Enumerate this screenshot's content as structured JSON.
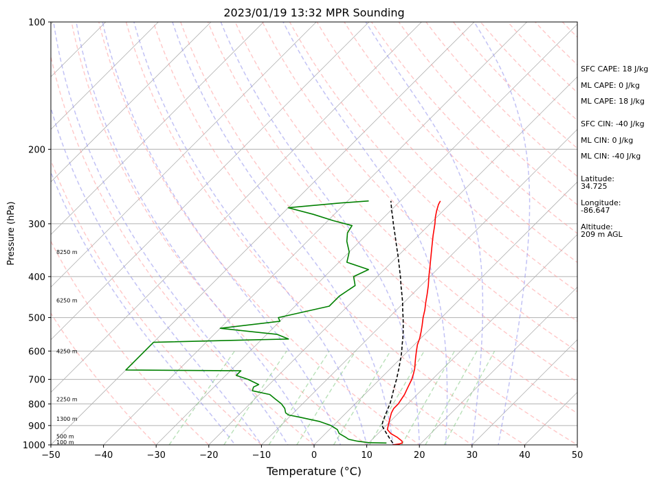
{
  "chart_data": {
    "type": "line",
    "subtype": "skew-T log-P",
    "title": "2023/01/19 13:32 MPR Sounding",
    "xlabel": "Temperature (°C)",
    "ylabel": "Pressure (hPa)",
    "xlim": [
      -50,
      50
    ],
    "ylim": [
      1000,
      100
    ],
    "y_scale": "log",
    "x_ticks": [
      -50,
      -40,
      -30,
      -20,
      -10,
      0,
      10,
      20,
      30,
      40,
      50
    ],
    "y_ticks": [
      100,
      200,
      300,
      400,
      500,
      600,
      700,
      800,
      900,
      1000
    ],
    "x_tick_labels": [
      "−50",
      "−40",
      "−30",
      "−20",
      "−10",
      "0",
      "10",
      "20",
      "30",
      "40",
      "50"
    ],
    "y_tick_labels": [
      "100",
      "200",
      "300",
      "400",
      "500",
      "600",
      "700",
      "800",
      "900",
      "1000"
    ],
    "grid": "isobars",
    "series": [
      {
        "id": "temperature",
        "color": "#ff0000",
        "points": [
          [
            1000,
            14.9
          ],
          [
            995,
            16.0
          ],
          [
            990,
            16.4
          ],
          [
            980,
            16.0
          ],
          [
            960,
            14.4
          ],
          [
            940,
            12.4
          ],
          [
            920,
            11.0
          ],
          [
            900,
            10.4
          ],
          [
            880,
            9.8
          ],
          [
            860,
            9.2
          ],
          [
            840,
            8.6
          ],
          [
            820,
            8.2
          ],
          [
            800,
            8.2
          ],
          [
            780,
            7.9
          ],
          [
            760,
            7.6
          ],
          [
            740,
            7.1
          ],
          [
            720,
            6.6
          ],
          [
            700,
            6.1
          ],
          [
            680,
            5.4
          ],
          [
            660,
            4.6
          ],
          [
            640,
            3.6
          ],
          [
            620,
            2.6
          ],
          [
            600,
            1.6
          ],
          [
            580,
            0.6
          ],
          [
            560,
            -0.2
          ],
          [
            540,
            -1.2
          ],
          [
            520,
            -2.3
          ],
          [
            500,
            -3.5
          ],
          [
            480,
            -4.6
          ],
          [
            460,
            -5.9
          ],
          [
            440,
            -7.2
          ],
          [
            420,
            -8.6
          ],
          [
            400,
            -10.2
          ],
          [
            380,
            -11.8
          ],
          [
            360,
            -13.5
          ],
          [
            340,
            -15.3
          ],
          [
            320,
            -17.2
          ],
          [
            300,
            -19.1
          ],
          [
            290,
            -20.2
          ],
          [
            280,
            -21.2
          ],
          [
            270,
            -22.1
          ],
          [
            265,
            -22.4
          ]
        ]
      },
      {
        "id": "dewpoint",
        "color": "#008000",
        "points": [
          [
            990,
            13.4
          ],
          [
            988,
            10.0
          ],
          [
            980,
            7.5
          ],
          [
            970,
            5.5
          ],
          [
            960,
            4.6
          ],
          [
            940,
            2.6
          ],
          [
            920,
            1.5
          ],
          [
            900,
            -0.5
          ],
          [
            880,
            -3.5
          ],
          [
            860,
            -8.0
          ],
          [
            850,
            -10.5
          ],
          [
            840,
            -11.5
          ],
          [
            820,
            -12.5
          ],
          [
            800,
            -14.0
          ],
          [
            780,
            -16.0
          ],
          [
            760,
            -18.0
          ],
          [
            745,
            -22.0
          ],
          [
            730,
            -22.5
          ],
          [
            720,
            -22.0
          ],
          [
            700,
            -25.0
          ],
          [
            685,
            -28.0
          ],
          [
            668,
            -28.0
          ],
          [
            665,
            -50.0
          ],
          [
            572,
            -50.0
          ],
          [
            562,
            -25.0
          ],
          [
            548,
            -28.0
          ],
          [
            530,
            -40.0
          ],
          [
            510,
            -30.0
          ],
          [
            500,
            -31.0
          ],
          [
            470,
            -23.5
          ],
          [
            460,
            -23.5
          ],
          [
            445,
            -23.5
          ],
          [
            420,
            -22.5
          ],
          [
            400,
            -24.5
          ],
          [
            385,
            -23.0
          ],
          [
            370,
            -28.5
          ],
          [
            350,
            -30.0
          ],
          [
            330,
            -32.5
          ],
          [
            315,
            -34.0
          ],
          [
            303,
            -34.5
          ],
          [
            295,
            -39.0
          ],
          [
            285,
            -44.0
          ],
          [
            275,
            -50.0
          ],
          [
            268,
            -41.0
          ],
          [
            265,
            -36.0
          ]
        ]
      },
      {
        "id": "parcel-profile",
        "color": "#000000",
        "style": "dashed",
        "points": [
          [
            990,
            14.6
          ],
          [
            980,
            14.0
          ],
          [
            960,
            12.8
          ],
          [
            940,
            11.6
          ],
          [
            920,
            10.4
          ],
          [
            900,
            9.2
          ],
          [
            880,
            8.6
          ],
          [
            860,
            8.1
          ],
          [
            840,
            7.6
          ],
          [
            820,
            7.1
          ],
          [
            800,
            6.6
          ],
          [
            780,
            6.0
          ],
          [
            760,
            5.3
          ],
          [
            740,
            4.6
          ],
          [
            720,
            3.9
          ],
          [
            700,
            3.2
          ],
          [
            680,
            2.4
          ],
          [
            660,
            1.6
          ],
          [
            640,
            0.7
          ],
          [
            620,
            -0.2
          ],
          [
            600,
            -1.2
          ],
          [
            580,
            -2.3
          ],
          [
            560,
            -3.4
          ],
          [
            540,
            -4.6
          ],
          [
            520,
            -5.9
          ],
          [
            500,
            -7.3
          ],
          [
            480,
            -8.8
          ],
          [
            460,
            -10.3
          ],
          [
            440,
            -12.0
          ],
          [
            420,
            -13.8
          ],
          [
            400,
            -15.6
          ],
          [
            380,
            -17.6
          ],
          [
            360,
            -19.7
          ],
          [
            340,
            -22.0
          ],
          [
            320,
            -24.4
          ],
          [
            300,
            -27.0
          ],
          [
            290,
            -28.3
          ],
          [
            280,
            -29.7
          ],
          [
            265,
            -31.8
          ]
        ]
      }
    ],
    "height_labels": [
      "100 m",
      "500 m",
      "1300 m",
      "2250 m",
      "4250 m",
      "6250 m",
      "8250 m"
    ],
    "height_label_pressures": [
      1000,
      955,
      867,
      780,
      600,
      455,
      350
    ],
    "skew_isotherms_start_temps": [
      -160,
      -150,
      -140,
      -130,
      -120,
      -110,
      -100,
      -90,
      -80,
      -70,
      -60,
      -50,
      -40,
      -30,
      -20,
      -10,
      0,
      10,
      20,
      30,
      40,
      50
    ],
    "dry_adiabats_theta_c": [
      -30,
      -20,
      -10,
      0,
      10,
      20,
      30,
      40,
      50,
      60,
      70,
      80,
      90,
      100,
      110,
      120,
      130,
      140,
      150,
      160,
      170,
      180,
      190
    ],
    "moist_adiabats_start_temps": [
      -15,
      -10,
      -5,
      0,
      5,
      10,
      15,
      20,
      25,
      30,
      35
    ],
    "mixing_ratio_lines_gkg": [
      0.4,
      1,
      2,
      3,
      5,
      8,
      12,
      16,
      20
    ],
    "colors": {
      "isotherm": "#b0b0b0",
      "isobar": "#b0b0b0",
      "dry_adiabat": "#ff9999",
      "moist_adiabat": "#9999ee",
      "mixing_ratio": "#88cc88"
    }
  },
  "info_panel": {
    "sfc_cape": "SFC CAPE: 18 J/kg",
    "ml_cape_1": "ML CAPE: 0 J/kg",
    "ml_cape_2": "ML CAPE: 18 J/kg",
    "sfc_cin": "SFC CIN: -40 J/kg",
    "ml_cin_1": "ML CIN: 0 J/kg",
    "ml_cin_2": "ML CIN: -40 J/kg",
    "latitude": "Latitude:\n34.725",
    "longitude": "Longitude:\n-86.647",
    "altitude": "Altitude:\n209 m AGL"
  }
}
